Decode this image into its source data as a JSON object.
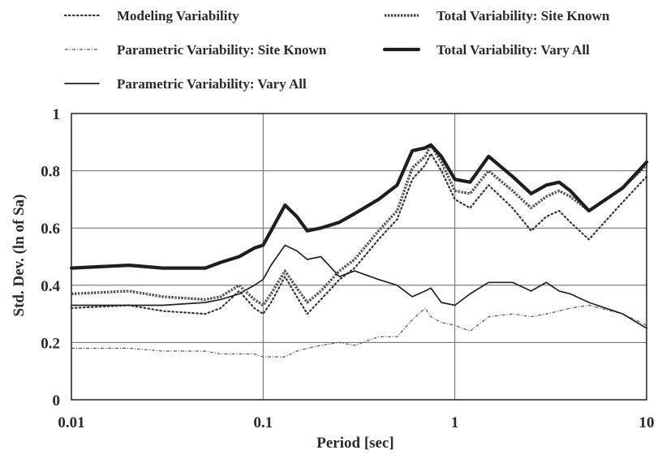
{
  "chart_data": {
    "type": "line",
    "title": "",
    "xlabel": "Period [sec]",
    "ylabel": "Std. Dev. (ln of Sa)",
    "xscale": "log",
    "xlim": [
      0.01,
      10
    ],
    "ylim": [
      0,
      1
    ],
    "grid": true,
    "legend_position": "top",
    "x_tick_labels": [
      "0.01",
      "0.1",
      "1",
      "10"
    ],
    "y_tick_labels": [
      "0",
      "0.2",
      "0.4",
      "0.6",
      "0.8",
      "1"
    ],
    "x": [
      0.01,
      0.02,
      0.03,
      0.05,
      0.06,
      0.075,
      0.09,
      0.1,
      0.11,
      0.13,
      0.15,
      0.17,
      0.2,
      0.25,
      0.3,
      0.4,
      0.5,
      0.6,
      0.7,
      0.75,
      0.85,
      1.0,
      1.2,
      1.5,
      2.0,
      2.5,
      3.0,
      3.5,
      4.0,
      5.0,
      7.5,
      10.0
    ],
    "series": [
      {
        "name": "Modeling Variability",
        "style": "dotted",
        "color": "#333333",
        "values": [
          0.32,
          0.33,
          0.31,
          0.3,
          0.32,
          0.38,
          0.32,
          0.3,
          0.34,
          0.43,
          0.36,
          0.3,
          0.35,
          0.42,
          0.46,
          0.56,
          0.63,
          0.77,
          0.82,
          0.86,
          0.8,
          0.7,
          0.67,
          0.75,
          0.67,
          0.59,
          0.64,
          0.66,
          0.62,
          0.56,
          0.69,
          0.78
        ]
      },
      {
        "name": "Parametric Variability: Site Known",
        "style": "dashdot",
        "color": "#555555",
        "values": [
          0.18,
          0.18,
          0.17,
          0.17,
          0.16,
          0.16,
          0.16,
          0.15,
          0.15,
          0.15,
          0.17,
          0.18,
          0.19,
          0.2,
          0.19,
          0.22,
          0.22,
          0.28,
          0.32,
          0.29,
          0.27,
          0.26,
          0.24,
          0.29,
          0.3,
          0.29,
          0.3,
          0.31,
          0.32,
          0.33,
          0.3,
          0.26
        ]
      },
      {
        "name": "Parametric Variability: Vary All",
        "style": "solid",
        "color": "#222222",
        "values": [
          0.33,
          0.33,
          0.33,
          0.34,
          0.35,
          0.37,
          0.4,
          0.42,
          0.47,
          0.54,
          0.52,
          0.49,
          0.5,
          0.43,
          0.45,
          0.42,
          0.4,
          0.36,
          0.38,
          0.39,
          0.34,
          0.33,
          0.37,
          0.41,
          0.41,
          0.38,
          0.41,
          0.38,
          0.37,
          0.34,
          0.3,
          0.25
        ]
      },
      {
        "name": "Total Variability: Site Known",
        "style": "xmarked",
        "color": "#444444",
        "values": [
          0.37,
          0.38,
          0.36,
          0.35,
          0.36,
          0.4,
          0.35,
          0.33,
          0.37,
          0.45,
          0.39,
          0.34,
          0.38,
          0.45,
          0.49,
          0.59,
          0.66,
          0.81,
          0.85,
          0.89,
          0.83,
          0.73,
          0.72,
          0.8,
          0.73,
          0.67,
          0.71,
          0.73,
          0.71,
          0.66,
          0.74,
          0.82
        ]
      },
      {
        "name": "Total Variability: Vary All",
        "style": "thick",
        "color": "#1e1e1e",
        "values": [
          0.46,
          0.47,
          0.46,
          0.46,
          0.48,
          0.5,
          0.53,
          0.54,
          0.59,
          0.68,
          0.64,
          0.59,
          0.6,
          0.62,
          0.65,
          0.7,
          0.75,
          0.87,
          0.88,
          0.89,
          0.85,
          0.77,
          0.76,
          0.85,
          0.78,
          0.72,
          0.75,
          0.76,
          0.73,
          0.66,
          0.74,
          0.83
        ]
      }
    ]
  }
}
